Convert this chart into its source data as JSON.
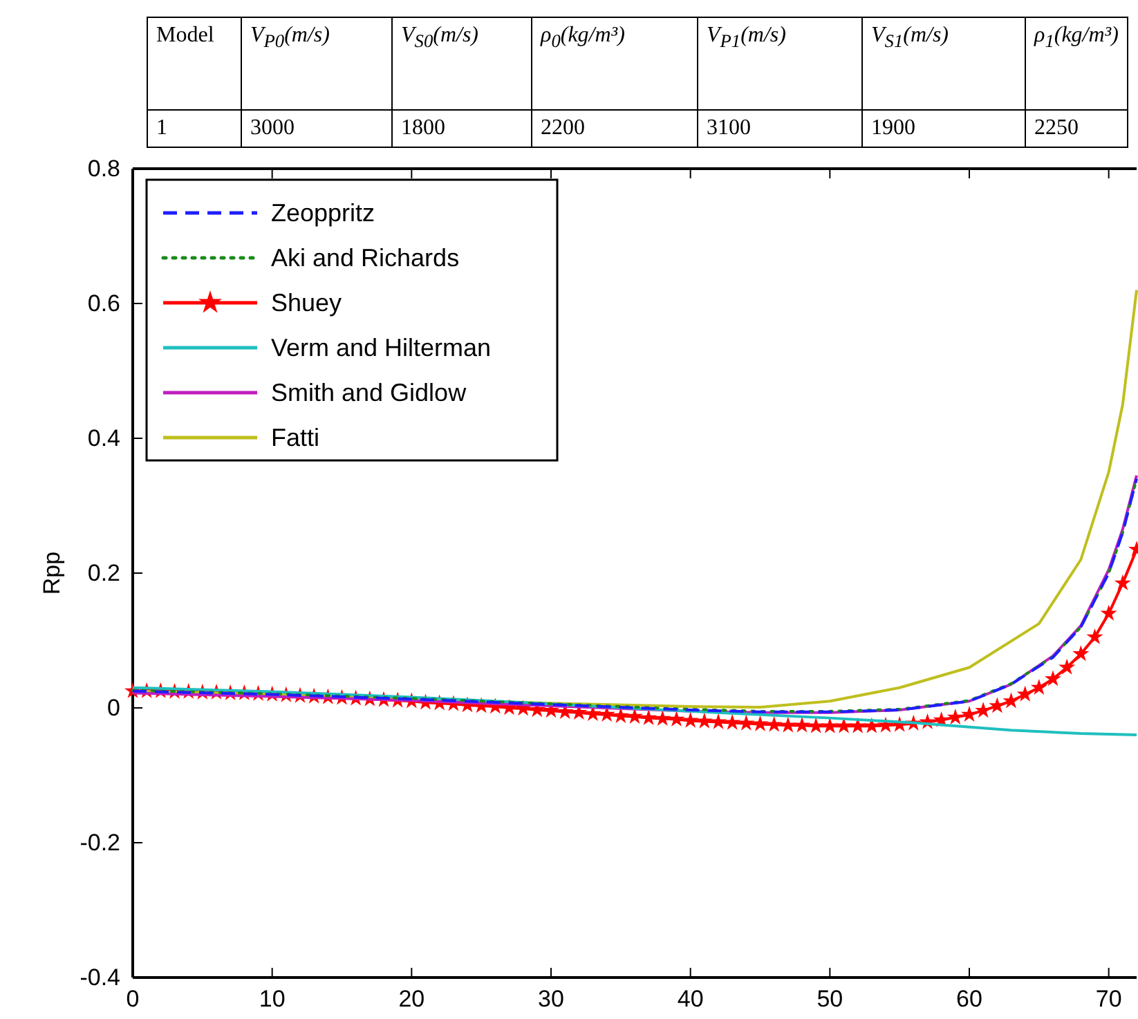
{
  "chart_data": {
    "type": "line",
    "ylabel": "Rpp",
    "xlim": [
      0,
      72
    ],
    "ylim": [
      -0.4,
      0.8
    ],
    "xticks": [
      0,
      10,
      20,
      30,
      40,
      50,
      60,
      70
    ],
    "yticks": [
      -0.4,
      -0.2,
      0,
      0.2,
      0.4,
      0.6,
      0.8
    ],
    "grid": false,
    "legend": "top left",
    "annotations": [
      "Model",
      "V$_{P0}$(m/s)",
      "V$_{S0}$(m/s)",
      "ρ$_{0}$(kg/m³)",
      "V$_{P1}$(m/s)",
      "V$_{S1}$(m/s)",
      "ρ$_{1}$(kg/m³)",
      "1",
      "3000",
      "1800",
      "2200",
      "3100",
      "1900",
      "2250"
    ],
    "series": [
      {
        "name": "Zeoppritz",
        "color": "#1f1fff",
        "line_style": "dashed",
        "marker": "none",
        "x": [
          0,
          10,
          20,
          30,
          40,
          45,
          50,
          55,
          60,
          63,
          66,
          68,
          70,
          71,
          72
        ],
        "values": [
          0.025,
          0.02,
          0.013,
          0.005,
          -0.003,
          -0.006,
          -0.006,
          -0.003,
          0.01,
          0.035,
          0.075,
          0.12,
          0.2,
          0.26,
          0.34
        ]
      },
      {
        "name": "Aki and Richards",
        "color": "#1a8a1a",
        "line_style": "dotted",
        "marker": "none",
        "x": [
          0,
          10,
          20,
          30,
          40,
          45,
          50,
          55,
          60,
          63,
          66,
          68,
          70,
          71,
          72
        ],
        "values": [
          0.026,
          0.021,
          0.014,
          0.006,
          -0.002,
          -0.005,
          -0.005,
          -0.002,
          0.011,
          0.036,
          0.076,
          0.12,
          0.2,
          0.26,
          0.34
        ]
      },
      {
        "name": "Shuey",
        "color": "#ff0000",
        "line_style": "solid",
        "marker": "star",
        "x": [
          0,
          1,
          2,
          3,
          4,
          5,
          6,
          7,
          8,
          9,
          10,
          11,
          12,
          13,
          14,
          15,
          16,
          17,
          18,
          19,
          20,
          21,
          22,
          23,
          24,
          25,
          26,
          27,
          28,
          29,
          30,
          31,
          32,
          33,
          34,
          35,
          36,
          37,
          38,
          39,
          40,
          41,
          42,
          43,
          44,
          45,
          46,
          47,
          48,
          49,
          50,
          51,
          52,
          53,
          54,
          55,
          56,
          57,
          58,
          59,
          60,
          61,
          62,
          63,
          64,
          65,
          66,
          67,
          68,
          69,
          70,
          71,
          72
        ],
        "values": [
          0.025,
          0.025,
          0.025,
          0.024,
          0.024,
          0.023,
          0.023,
          0.022,
          0.022,
          0.021,
          0.02,
          0.019,
          0.018,
          0.017,
          0.016,
          0.015,
          0.014,
          0.013,
          0.012,
          0.011,
          0.01,
          0.008,
          0.007,
          0.006,
          0.004,
          0.003,
          0.002,
          0.0,
          -0.001,
          -0.003,
          -0.004,
          -0.006,
          -0.007,
          -0.009,
          -0.01,
          -0.012,
          -0.013,
          -0.015,
          -0.016,
          -0.017,
          -0.019,
          -0.02,
          -0.021,
          -0.022,
          -0.023,
          -0.024,
          -0.025,
          -0.026,
          -0.026,
          -0.027,
          -0.027,
          -0.027,
          -0.027,
          -0.027,
          -0.026,
          -0.025,
          -0.023,
          -0.021,
          -0.018,
          -0.014,
          -0.01,
          -0.004,
          0.003,
          0.01,
          0.02,
          0.03,
          0.043,
          0.06,
          0.08,
          0.105,
          0.14,
          0.185,
          0.235
        ]
      },
      {
        "name": "Verm and Hilterman",
        "color": "#1fbfbf",
        "line_style": "solid",
        "marker": "none",
        "x": [
          0,
          10,
          20,
          30,
          40,
          50,
          56,
          63,
          68,
          72
        ],
        "values": [
          0.03,
          0.024,
          0.016,
          0.006,
          -0.005,
          -0.015,
          -0.022,
          -0.033,
          -0.038,
          -0.04
        ]
      },
      {
        "name": "Smith and Gidlow",
        "color": "#bf1fbf",
        "line_style": "solid",
        "marker": "none",
        "x": [
          0,
          10,
          20,
          30,
          40,
          45,
          50,
          55,
          60,
          63,
          66,
          68,
          70,
          71,
          72
        ],
        "values": [
          0.022,
          0.017,
          0.011,
          0.003,
          -0.005,
          -0.007,
          -0.007,
          -0.003,
          0.01,
          0.035,
          0.077,
          0.122,
          0.205,
          0.265,
          0.345
        ]
      },
      {
        "name": "Fatti",
        "color": "#bfbf1f",
        "line_style": "solid",
        "marker": "none",
        "x": [
          0,
          10,
          20,
          30,
          40,
          45,
          50,
          55,
          60,
          65,
          68,
          70,
          71,
          72
        ],
        "values": [
          0.025,
          0.02,
          0.013,
          0.007,
          0.002,
          0.001,
          0.01,
          0.03,
          0.06,
          0.125,
          0.22,
          0.35,
          0.45,
          0.62
        ]
      }
    ]
  }
}
